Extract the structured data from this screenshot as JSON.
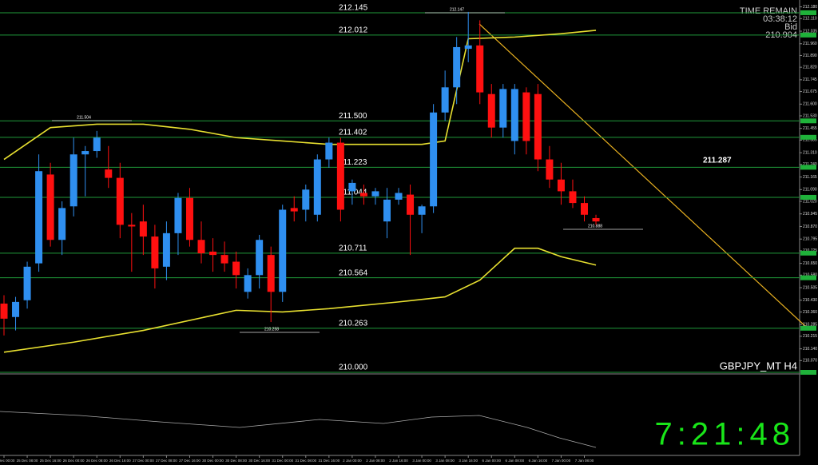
{
  "chart_data": {
    "type": "candlestick",
    "title": "GBPJPY_MT H4",
    "categories": [
      "25 Dec 00:00",
      null,
      "25 Dec 08:00",
      null,
      "25 Dec 16:00",
      null,
      "26 Dec 00:00",
      null,
      "26 Dec 08:00",
      null,
      "26 Dec 16:00",
      null,
      "27 Dec 00:00",
      null,
      "27 Dec 08:00",
      null,
      "27 Dec 16:00",
      null,
      "30 Dec 00:00",
      null,
      "30 Dec 08:00",
      null,
      "30 Dec 16:00",
      null,
      "31 Dec 00:00",
      null,
      "31 Dec 08:00",
      null,
      "31 Dec 16:00",
      null,
      "2 Jan 00:00",
      null,
      "2 Jan 08:00",
      null,
      "2 Jan 16:00",
      null,
      "3 Jan 00:00",
      null,
      "3 Jan 08:00",
      null,
      "3 Jan 16:00",
      null,
      "6 Jan 00:00",
      null,
      "6 Jan 08:00",
      null,
      "6 Jan 16:00",
      null,
      "7 Jan 00:00",
      null,
      "7 Jan 08:00",
      null
    ],
    "open": [
      210.41,
      210.33,
      210.43,
      210.65,
      211.18,
      210.79,
      210.99,
      211.3,
      211.32,
      211.21,
      211.16,
      210.88,
      210.9,
      210.81,
      210.63,
      210.83,
      211.04,
      210.79,
      210.72,
      210.7,
      210.66,
      210.48,
      210.58,
      210.7,
      210.48,
      210.98,
      210.97,
      210.94,
      211.27,
      211.37,
      211.08,
      211.07,
      211.05,
      210.9,
      211.03,
      211.06,
      210.94,
      210.99,
      211.55,
      211.7,
      211.93,
      211.95,
      211.66,
      211.46,
      211.38,
      211.67,
      211.66,
      211.27,
      211.15,
      211.08,
      211.01,
      210.92
    ],
    "high": [
      210.46,
      210.45,
      210.66,
      211.3,
      211.25,
      211.02,
      211.4,
      211.35,
      211.44,
      211.35,
      211.25,
      210.95,
      211,
      210.88,
      210.9,
      211.07,
      211.1,
      210.9,
      210.8,
      210.78,
      210.72,
      210.62,
      210.82,
      210.75,
      211,
      211.05,
      211.12,
      211.3,
      211.4,
      211.4,
      211.15,
      211.12,
      211.1,
      211.1,
      211.1,
      211.12,
      211,
      211.6,
      211.8,
      212,
      212.15,
      212.1,
      211.72,
      211.72,
      211.72,
      211.7,
      211.72,
      211.35,
      211.25,
      211.15,
      211.05,
      210.94
    ],
    "low": [
      210.22,
      210.25,
      210.38,
      210.6,
      210.75,
      210.7,
      210.93,
      211.05,
      211.28,
      211.1,
      210.8,
      210.6,
      210.7,
      210.5,
      210.55,
      210.7,
      210.75,
      210.65,
      210.6,
      210.6,
      210.5,
      210.44,
      210.5,
      210.3,
      210.42,
      210.9,
      210.9,
      210.9,
      211.22,
      210.9,
      211,
      211,
      211,
      210.8,
      211,
      210.7,
      210.83,
      210.95,
      211.5,
      211.6,
      211.85,
      211.6,
      211.4,
      211.4,
      211.3,
      211.3,
      211.2,
      211.1,
      211,
      210.98,
      210.9,
      210.88
    ],
    "close": [
      210.32,
      210.42,
      210.63,
      211.2,
      210.79,
      210.98,
      211.3,
      211.32,
      211.4,
      211.16,
      210.88,
      210.87,
      210.81,
      210.62,
      210.83,
      211.04,
      210.79,
      210.71,
      210.7,
      210.65,
      210.58,
      210.58,
      210.79,
      210.48,
      210.97,
      210.96,
      211.09,
      211.27,
      211.37,
      210.97,
      211.13,
      211.05,
      211.08,
      211.03,
      211.07,
      210.94,
      210.99,
      211.55,
      211.7,
      211.94,
      211.95,
      211.67,
      211.46,
      211.69,
      211.69,
      211.38,
      211.27,
      211.15,
      211.08,
      211.01,
      210.94,
      210.9
    ],
    "up_color": "#2f8ff0",
    "down_color": "#ff1010",
    "series": [
      {
        "name": "Upper Band",
        "color": "#e8e030",
        "x": [
          0,
          4,
          8,
          12,
          16,
          20,
          24,
          28,
          32,
          36,
          38,
          40,
          44,
          48,
          51
        ],
        "values": [
          211.27,
          211.46,
          211.48,
          211.48,
          211.45,
          211.4,
          211.38,
          211.36,
          211.36,
          211.36,
          211.38,
          211.99,
          212,
          212.02,
          212.04
        ]
      },
      {
        "name": "Lower Band",
        "color": "#e8e030",
        "x": [
          0,
          6,
          12,
          20,
          24,
          28,
          34,
          38,
          41,
          44,
          46,
          48,
          51
        ],
        "values": [
          210.12,
          210.18,
          210.25,
          210.37,
          210.36,
          210.38,
          210.42,
          210.45,
          210.55,
          210.74,
          210.74,
          210.69,
          210.64
        ]
      }
    ],
    "levels": [
      212.145,
      212.012,
      {
        "value": 211.5,
        "label": "211.500"
      },
      211.402,
      211.223,
      211.044,
      210.711,
      210.564,
      210.263,
      {
        "value": 210,
        "label": "210.000"
      }
    ],
    "annotations": [
      "212.147",
      "211.504",
      "210.258",
      "210.888"
    ],
    "ylim": [
      210.0,
      212.221
    ],
    "yticks": [
      {
        "value": 212.18,
        "label": "212.180"
      },
      {
        "value": 212.11,
        "label": "212.110"
      },
      212.035,
      {
        "value": 211.96,
        "label": "211.960"
      },
      {
        "value": 211.89,
        "label": "211.890"
      },
      {
        "value": 211.82,
        "label": "211.820"
      },
      211.745,
      211.675,
      {
        "value": 211.6,
        "label": "211.600"
      },
      {
        "value": 211.53,
        "label": "211.530"
      },
      211.455,
      211.385,
      {
        "value": 211.31,
        "label": "211.310"
      },
      {
        "value": 211.24,
        "label": "211.240"
      },
      211.165,
      {
        "value": 211.09,
        "label": "211.090"
      },
      {
        "value": 211.02,
        "label": "211.020"
      },
      210.945,
      {
        "value": 210.87,
        "label": "210.870"
      },
      210.795,
      210.725,
      {
        "value": 210.65,
        "label": "210.650"
      },
      {
        "value": 210.58,
        "label": "210.580"
      },
      210.505,
      {
        "value": 210.43,
        "label": "210.430"
      },
      {
        "value": 210.36,
        "label": "210.360"
      },
      210.285,
      210.215,
      {
        "value": 210.14,
        "label": "210.140"
      },
      {
        "value": 210.07,
        "label": "210.070"
      }
    ]
  },
  "info": {
    "time_label": "TIME REMAIN",
    "time_remain": "03:38:12",
    "bid_label": "Bid",
    "bid": "210.904",
    "target": "211.287",
    "clock": "7:21:48"
  }
}
